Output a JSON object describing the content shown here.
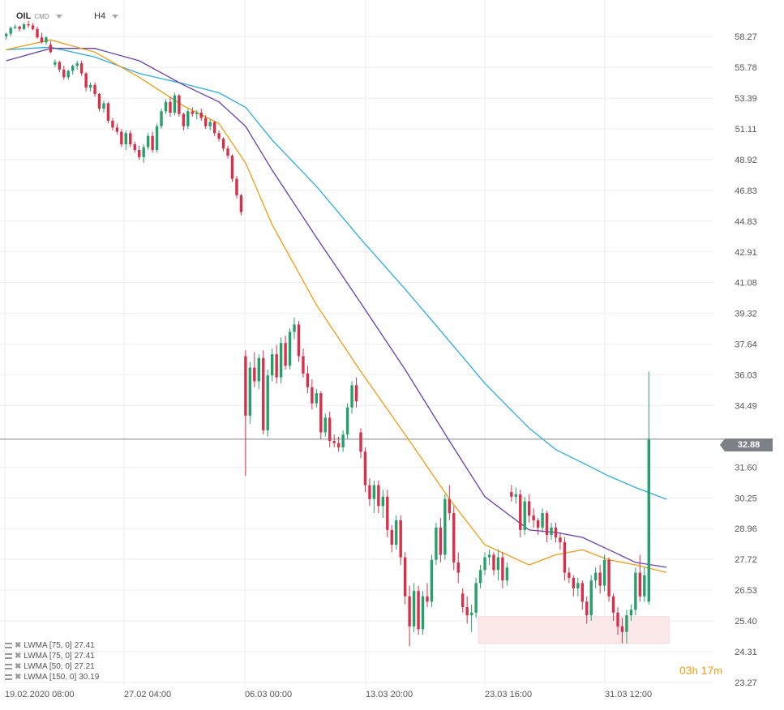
{
  "header": {
    "symbol": "OIL",
    "instrument_type": "CMD",
    "timeframe": "H4"
  },
  "current_price": "32.88",
  "countdown": {
    "hours": "03",
    "hours_unit": "h",
    "minutes": "17",
    "minutes_unit": "m"
  },
  "legend": [
    {
      "label": "LWMA [75, 0]",
      "value": "27.41",
      "color": "#6a3db4"
    },
    {
      "label": "LWMA [75, 0]",
      "value": "27.41",
      "color": "#6a3db4"
    },
    {
      "label": "LWMA [50, 0]",
      "value": "27.21",
      "color": "#f39c12"
    },
    {
      "label": "LWMA [150, 0]",
      "value": "30.19",
      "color": "#29aee6"
    }
  ],
  "chart_data": {
    "type": "candlestick",
    "y_ticks": [
      "58.27",
      "55.78",
      "53.39",
      "51.11",
      "48.92",
      "46.83",
      "44.83",
      "42.91",
      "41.08",
      "39.32",
      "37.64",
      "36.03",
      "34.49",
      "31.60",
      "30.25",
      "28.96",
      "27.72",
      "26.53",
      "25.40",
      "24.31",
      "23.27"
    ],
    "x_ticks": [
      "19.02.2020  08:00",
      "27.02  04:00",
      "06.03  00:00",
      "13.03  20:00",
      "23.03  16:00",
      "31.03  12:00"
    ],
    "ylim": [
      23.27,
      60.4
    ],
    "scale": "log",
    "candles": [
      {
        "o": 58.3,
        "h": 58.6,
        "l": 58.0,
        "c": 58.5
      },
      {
        "o": 58.5,
        "h": 59.1,
        "l": 58.3,
        "c": 59.0
      },
      {
        "o": 59.0,
        "h": 59.3,
        "l": 58.9,
        "c": 59.1
      },
      {
        "o": 59.1,
        "h": 59.2,
        "l": 58.7,
        "c": 58.9
      },
      {
        "o": 58.9,
        "h": 59.4,
        "l": 58.8,
        "c": 59.3
      },
      {
        "o": 59.3,
        "h": 59.6,
        "l": 59.0,
        "c": 59.2
      },
      {
        "o": 59.2,
        "h": 59.4,
        "l": 58.8,
        "c": 58.9
      },
      {
        "o": 58.9,
        "h": 59.1,
        "l": 58.1,
        "c": 58.2
      },
      {
        "o": 58.2,
        "h": 58.6,
        "l": 57.7,
        "c": 57.8
      },
      {
        "o": 57.8,
        "h": 58.3,
        "l": 57.6,
        "c": 58.2
      },
      {
        "o": 57.6,
        "h": 57.9,
        "l": 56.9,
        "c": 57.0
      },
      {
        "o": 56.0,
        "h": 56.4,
        "l": 55.8,
        "c": 56.2
      },
      {
        "o": 56.2,
        "h": 56.3,
        "l": 55.4,
        "c": 55.6
      },
      {
        "o": 55.6,
        "h": 55.9,
        "l": 54.8,
        "c": 55.0
      },
      {
        "o": 55.0,
        "h": 55.6,
        "l": 54.8,
        "c": 55.5
      },
      {
        "o": 55.5,
        "h": 56.0,
        "l": 55.2,
        "c": 55.9
      },
      {
        "o": 55.9,
        "h": 56.3,
        "l": 55.6,
        "c": 56.1
      },
      {
        "o": 56.1,
        "h": 56.3,
        "l": 55.1,
        "c": 55.3
      },
      {
        "o": 55.3,
        "h": 55.4,
        "l": 53.9,
        "c": 54.2
      },
      {
        "o": 54.2,
        "h": 54.6,
        "l": 53.9,
        "c": 54.4
      },
      {
        "o": 54.4,
        "h": 54.6,
        "l": 53.5,
        "c": 53.7
      },
      {
        "o": 53.7,
        "h": 53.8,
        "l": 52.4,
        "c": 52.6
      },
      {
        "o": 52.6,
        "h": 53.2,
        "l": 52.3,
        "c": 53.0
      },
      {
        "o": 53.0,
        "h": 53.1,
        "l": 51.5,
        "c": 51.7
      },
      {
        "o": 51.7,
        "h": 51.9,
        "l": 51.0,
        "c": 51.2
      },
      {
        "o": 51.2,
        "h": 51.5,
        "l": 50.7,
        "c": 50.9
      },
      {
        "o": 50.9,
        "h": 51.1,
        "l": 49.8,
        "c": 50.0
      },
      {
        "o": 50.0,
        "h": 51.0,
        "l": 49.6,
        "c": 50.8
      },
      {
        "o": 50.8,
        "h": 51.0,
        "l": 49.8,
        "c": 50.0
      },
      {
        "o": 50.0,
        "h": 50.2,
        "l": 49.4,
        "c": 49.6
      },
      {
        "o": 49.6,
        "h": 49.9,
        "l": 48.9,
        "c": 49.1
      },
      {
        "o": 49.1,
        "h": 50.0,
        "l": 48.7,
        "c": 49.8
      },
      {
        "o": 49.8,
        "h": 50.8,
        "l": 49.6,
        "c": 50.6
      },
      {
        "o": 50.6,
        "h": 50.9,
        "l": 49.4,
        "c": 49.6
      },
      {
        "o": 49.6,
        "h": 51.5,
        "l": 49.4,
        "c": 51.3
      },
      {
        "o": 51.3,
        "h": 52.6,
        "l": 51.1,
        "c": 52.4
      },
      {
        "o": 52.4,
        "h": 53.3,
        "l": 52.2,
        "c": 53.1
      },
      {
        "o": 53.1,
        "h": 53.5,
        "l": 52.0,
        "c": 52.3
      },
      {
        "o": 52.3,
        "h": 53.8,
        "l": 52.1,
        "c": 53.6
      },
      {
        "o": 53.6,
        "h": 53.7,
        "l": 52.0,
        "c": 52.2
      },
      {
        "o": 52.2,
        "h": 52.3,
        "l": 51.0,
        "c": 51.3
      },
      {
        "o": 51.3,
        "h": 52.6,
        "l": 51.1,
        "c": 52.4
      },
      {
        "o": 52.4,
        "h": 52.7,
        "l": 52.0,
        "c": 52.2
      },
      {
        "o": 52.2,
        "h": 52.5,
        "l": 51.8,
        "c": 52.3
      },
      {
        "o": 52.3,
        "h": 52.6,
        "l": 51.7,
        "c": 51.9
      },
      {
        "o": 51.9,
        "h": 52.1,
        "l": 51.1,
        "c": 51.3
      },
      {
        "o": 51.3,
        "h": 51.8,
        "l": 51.0,
        "c": 51.6
      },
      {
        "o": 51.6,
        "h": 51.7,
        "l": 50.6,
        "c": 50.8
      },
      {
        "o": 50.8,
        "h": 51.0,
        "l": 50.2,
        "c": 50.4
      },
      {
        "o": 50.4,
        "h": 50.5,
        "l": 49.5,
        "c": 49.7
      },
      {
        "o": 49.7,
        "h": 49.9,
        "l": 49.0,
        "c": 49.2
      },
      {
        "o": 49.2,
        "h": 49.3,
        "l": 47.4,
        "c": 47.6
      },
      {
        "o": 47.6,
        "h": 47.8,
        "l": 46.3,
        "c": 46.5
      },
      {
        "o": 46.5,
        "h": 46.6,
        "l": 45.2,
        "c": 45.4
      },
      {
        "o": 37.0,
        "h": 37.3,
        "l": 31.2,
        "c": 34.0
      },
      {
        "o": 34.0,
        "h": 36.7,
        "l": 33.6,
        "c": 36.4
      },
      {
        "o": 36.4,
        "h": 37.2,
        "l": 35.4,
        "c": 35.7
      },
      {
        "o": 35.7,
        "h": 37.1,
        "l": 35.3,
        "c": 36.9
      },
      {
        "o": 36.9,
        "h": 37.3,
        "l": 33.1,
        "c": 33.3
      },
      {
        "o": 33.3,
        "h": 36.3,
        "l": 33.0,
        "c": 36.0
      },
      {
        "o": 36.0,
        "h": 37.4,
        "l": 35.7,
        "c": 37.1
      },
      {
        "o": 37.1,
        "h": 37.6,
        "l": 35.6,
        "c": 35.9
      },
      {
        "o": 35.9,
        "h": 38.0,
        "l": 35.6,
        "c": 37.7
      },
      {
        "o": 37.7,
        "h": 38.1,
        "l": 36.3,
        "c": 36.5
      },
      {
        "o": 36.5,
        "h": 38.5,
        "l": 36.3,
        "c": 38.3
      },
      {
        "o": 38.3,
        "h": 39.1,
        "l": 37.9,
        "c": 38.7
      },
      {
        "o": 38.7,
        "h": 38.9,
        "l": 36.7,
        "c": 37.0
      },
      {
        "o": 37.0,
        "h": 37.4,
        "l": 35.9,
        "c": 36.1
      },
      {
        "o": 36.1,
        "h": 36.5,
        "l": 35.1,
        "c": 35.4
      },
      {
        "o": 35.4,
        "h": 35.8,
        "l": 34.3,
        "c": 34.6
      },
      {
        "o": 34.6,
        "h": 35.3,
        "l": 34.4,
        "c": 35.1
      },
      {
        "o": 35.1,
        "h": 35.2,
        "l": 32.9,
        "c": 33.2
      },
      {
        "o": 33.2,
        "h": 34.1,
        "l": 33.0,
        "c": 33.9
      },
      {
        "o": 33.9,
        "h": 34.2,
        "l": 32.5,
        "c": 32.8
      },
      {
        "o": 32.8,
        "h": 33.1,
        "l": 32.5,
        "c": 32.7
      },
      {
        "o": 32.7,
        "h": 33.0,
        "l": 32.3,
        "c": 32.5
      },
      {
        "o": 32.5,
        "h": 33.3,
        "l": 32.3,
        "c": 33.1
      },
      {
        "o": 33.1,
        "h": 34.6,
        "l": 32.9,
        "c": 34.4
      },
      {
        "o": 34.4,
        "h": 35.7,
        "l": 34.1,
        "c": 35.5
      },
      {
        "o": 35.5,
        "h": 35.9,
        "l": 34.4,
        "c": 34.7
      },
      {
        "o": 33.2,
        "h": 33.4,
        "l": 32.0,
        "c": 32.3
      },
      {
        "o": 32.3,
        "h": 32.5,
        "l": 30.5,
        "c": 30.8
      },
      {
        "o": 30.8,
        "h": 31.1,
        "l": 29.9,
        "c": 30.2
      },
      {
        "o": 30.2,
        "h": 31.0,
        "l": 29.6,
        "c": 30.8
      },
      {
        "o": 30.8,
        "h": 31.0,
        "l": 29.6,
        "c": 29.9
      },
      {
        "o": 29.9,
        "h": 30.6,
        "l": 29.4,
        "c": 30.3
      },
      {
        "o": 30.3,
        "h": 30.6,
        "l": 28.6,
        "c": 28.9
      },
      {
        "o": 28.9,
        "h": 29.1,
        "l": 28.0,
        "c": 28.3
      },
      {
        "o": 28.3,
        "h": 29.5,
        "l": 28.1,
        "c": 29.3
      },
      {
        "o": 29.3,
        "h": 29.5,
        "l": 27.5,
        "c": 27.8
      },
      {
        "o": 27.8,
        "h": 28.0,
        "l": 26.0,
        "c": 26.3
      },
      {
        "o": 26.3,
        "h": 26.7,
        "l": 24.5,
        "c": 25.2
      },
      {
        "o": 25.2,
        "h": 26.8,
        "l": 25.0,
        "c": 26.5
      },
      {
        "o": 26.5,
        "h": 26.7,
        "l": 24.9,
        "c": 25.1
      },
      {
        "o": 25.1,
        "h": 26.5,
        "l": 24.9,
        "c": 26.3
      },
      {
        "o": 26.3,
        "h": 26.8,
        "l": 25.9,
        "c": 26.1
      },
      {
        "o": 26.1,
        "h": 27.9,
        "l": 25.9,
        "c": 27.7
      },
      {
        "o": 27.7,
        "h": 29.2,
        "l": 27.5,
        "c": 29.0
      },
      {
        "o": 29.0,
        "h": 29.4,
        "l": 27.6,
        "c": 27.9
      },
      {
        "o": 27.9,
        "h": 30.4,
        "l": 27.7,
        "c": 30.2
      },
      {
        "o": 30.2,
        "h": 30.8,
        "l": 29.3,
        "c": 29.6
      },
      {
        "o": 29.6,
        "h": 29.9,
        "l": 27.3,
        "c": 27.6
      },
      {
        "o": 27.6,
        "h": 28.0,
        "l": 26.8,
        "c": 27.2
      },
      {
        "o": 26.4,
        "h": 26.6,
        "l": 25.7,
        "c": 25.9
      },
      {
        "o": 25.9,
        "h": 26.3,
        "l": 25.3,
        "c": 25.6
      },
      {
        "o": 25.6,
        "h": 26.0,
        "l": 25.0,
        "c": 25.7
      },
      {
        "o": 25.7,
        "h": 27.0,
        "l": 25.5,
        "c": 26.8
      },
      {
        "o": 26.8,
        "h": 27.5,
        "l": 26.6,
        "c": 27.3
      },
      {
        "o": 27.3,
        "h": 28.0,
        "l": 27.1,
        "c": 27.8
      },
      {
        "o": 27.8,
        "h": 28.1,
        "l": 27.5,
        "c": 27.9
      },
      {
        "o": 27.9,
        "h": 28.0,
        "l": 27.1,
        "c": 27.3
      },
      {
        "o": 27.3,
        "h": 28.1,
        "l": 26.9,
        "c": 27.8
      },
      {
        "o": 27.8,
        "h": 28.0,
        "l": 26.6,
        "c": 26.9
      },
      {
        "o": 26.9,
        "h": 27.6,
        "l": 26.7,
        "c": 27.4
      },
      {
        "o": 30.5,
        "h": 30.8,
        "l": 30.1,
        "c": 30.3
      },
      {
        "o": 30.3,
        "h": 30.7,
        "l": 30.0,
        "c": 30.4
      },
      {
        "o": 30.4,
        "h": 30.6,
        "l": 28.6,
        "c": 28.9
      },
      {
        "o": 28.9,
        "h": 30.3,
        "l": 28.7,
        "c": 30.1
      },
      {
        "o": 30.1,
        "h": 30.4,
        "l": 29.2,
        "c": 29.5
      },
      {
        "o": 29.5,
        "h": 29.8,
        "l": 29.0,
        "c": 29.3
      },
      {
        "o": 29.3,
        "h": 29.4,
        "l": 28.7,
        "c": 29.0
      },
      {
        "o": 29.0,
        "h": 29.8,
        "l": 28.8,
        "c": 29.6
      },
      {
        "o": 29.6,
        "h": 29.7,
        "l": 28.4,
        "c": 28.7
      },
      {
        "o": 28.7,
        "h": 29.2,
        "l": 28.5,
        "c": 29.0
      },
      {
        "o": 29.0,
        "h": 29.2,
        "l": 28.4,
        "c": 28.6
      },
      {
        "o": 28.6,
        "h": 28.8,
        "l": 28.1,
        "c": 28.4
      },
      {
        "o": 28.4,
        "h": 28.6,
        "l": 26.9,
        "c": 27.2
      },
      {
        "o": 27.2,
        "h": 27.4,
        "l": 26.8,
        "c": 27.0
      },
      {
        "o": 27.0,
        "h": 27.1,
        "l": 26.3,
        "c": 26.6
      },
      {
        "o": 26.6,
        "h": 27.0,
        "l": 26.3,
        "c": 26.8
      },
      {
        "o": 26.8,
        "h": 26.9,
        "l": 25.8,
        "c": 26.1
      },
      {
        "o": 26.1,
        "h": 26.3,
        "l": 25.3,
        "c": 25.6
      },
      {
        "o": 25.6,
        "h": 27.1,
        "l": 25.4,
        "c": 26.9
      },
      {
        "o": 26.9,
        "h": 27.4,
        "l": 26.6,
        "c": 27.2
      },
      {
        "o": 27.2,
        "h": 27.5,
        "l": 26.4,
        "c": 26.7
      },
      {
        "o": 26.7,
        "h": 27.9,
        "l": 26.5,
        "c": 27.7
      },
      {
        "o": 27.7,
        "h": 27.8,
        "l": 26.1,
        "c": 26.3
      },
      {
        "o": 26.3,
        "h": 26.4,
        "l": 25.4,
        "c": 25.7
      },
      {
        "o": 25.7,
        "h": 25.9,
        "l": 24.9,
        "c": 25.2
      },
      {
        "o": 25.2,
        "h": 25.5,
        "l": 24.6,
        "c": 25.0
      },
      {
        "o": 25.0,
        "h": 25.8,
        "l": 24.6,
        "c": 25.6
      },
      {
        "o": 25.6,
        "h": 26.0,
        "l": 25.4,
        "c": 25.8
      },
      {
        "o": 25.8,
        "h": 27.4,
        "l": 25.6,
        "c": 27.2
      },
      {
        "o": 27.2,
        "h": 27.9,
        "l": 26.1,
        "c": 26.3
      },
      {
        "o": 26.3,
        "h": 27.4,
        "l": 26.1,
        "c": 27.1
      },
      {
        "o": 26.1,
        "h": 36.2,
        "l": 26.0,
        "c": 32.88
      }
    ],
    "lwma_50": [
      [
        0,
        57.2
      ],
      [
        10,
        58.0
      ],
      [
        20,
        57.0
      ],
      [
        30,
        55.0
      ],
      [
        40,
        52.8
      ],
      [
        48,
        51.5
      ],
      [
        54,
        48.7
      ],
      [
        60,
        44.6
      ],
      [
        70,
        39.8
      ],
      [
        80,
        36.2
      ],
      [
        90,
        33.1
      ],
      [
        100,
        30.2
      ],
      [
        108,
        28.3
      ],
      [
        118,
        27.5
      ],
      [
        124,
        27.9
      ],
      [
        130,
        28.1
      ],
      [
        136,
        27.7
      ],
      [
        142,
        27.5
      ],
      [
        149,
        27.21
      ]
    ],
    "lwma_75": [
      [
        0,
        56.3
      ],
      [
        10,
        57.3
      ],
      [
        20,
        57.3
      ],
      [
        30,
        56.3
      ],
      [
        40,
        54.4
      ],
      [
        48,
        53.1
      ],
      [
        54,
        51.3
      ],
      [
        60,
        48.2
      ],
      [
        70,
        43.8
      ],
      [
        80,
        39.9
      ],
      [
        90,
        36.3
      ],
      [
        100,
        32.8
      ],
      [
        108,
        30.3
      ],
      [
        118,
        28.9
      ],
      [
        124,
        28.8
      ],
      [
        130,
        28.6
      ],
      [
        136,
        28.1
      ],
      [
        142,
        27.6
      ],
      [
        149,
        27.41
      ]
    ],
    "lwma_150": [
      [
        0,
        57.2
      ],
      [
        10,
        57.4
      ],
      [
        20,
        56.6
      ],
      [
        30,
        55.3
      ],
      [
        40,
        54.5
      ],
      [
        48,
        53.8
      ],
      [
        54,
        52.7
      ],
      [
        60,
        50.3
      ],
      [
        70,
        47.1
      ],
      [
        80,
        43.7
      ],
      [
        90,
        40.7
      ],
      [
        100,
        37.8
      ],
      [
        108,
        35.6
      ],
      [
        118,
        33.4
      ],
      [
        124,
        32.4
      ],
      [
        130,
        31.8
      ],
      [
        136,
        31.2
      ],
      [
        142,
        30.7
      ],
      [
        149,
        30.19
      ]
    ],
    "support_zone": {
      "from": 24.6,
      "to": 25.55,
      "x_start": 108,
      "x_end": 149
    },
    "colors": {
      "up": "#26a06b",
      "down": "#d6304a",
      "lwma_50": "#f39c12",
      "lwma_75": "#6a3db4",
      "lwma_150": "#29aee6",
      "zone": "#fbe9ea",
      "current_line": "#7d8086"
    }
  }
}
